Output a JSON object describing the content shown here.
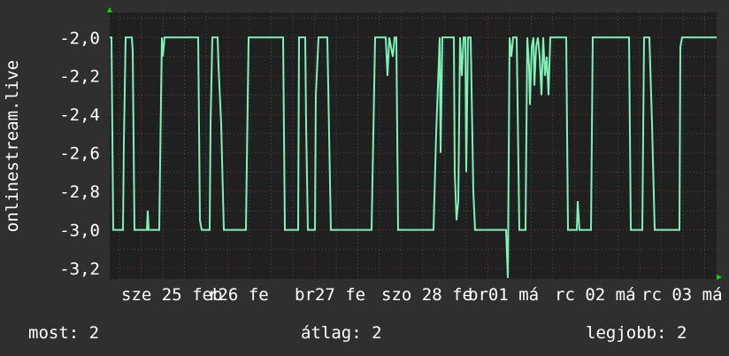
{
  "chart_data": {
    "type": "line",
    "title": "",
    "ylabel": "onlinestream.live",
    "xlabel": "",
    "ylim": [
      -3.255,
      -1.87
    ],
    "y_ticks": [
      "-2,0",
      "-2,2",
      "-2,4",
      "-2,6",
      "-2,8",
      "-3,0",
      "-3,2"
    ],
    "y_tick_values": [
      -2.0,
      -2.2,
      -2.4,
      -2.6,
      -2.8,
      -3.0,
      -3.2
    ],
    "x_tick_labels": [
      "sze 25 feb",
      "r26 fe",
      "br27 fe",
      "szo 28 fe",
      "br01 má",
      "rc 02 má",
      "rc 03 má"
    ],
    "grid": true,
    "colors": {
      "background": "#2f2f2f",
      "plot": "#202020",
      "line": "#7ff2b8",
      "grid_minor": "#505050",
      "grid_major": "#7a3030",
      "arrow": "#00e000"
    },
    "series": [
      {
        "points": [
          [
            "02-24 18:00",
            -2.0
          ],
          [
            "02-24 18:30",
            -2.0
          ],
          [
            "02-24 19:00",
            -3.0
          ],
          [
            "02-24 21:45",
            -3.0
          ],
          [
            "02-24 22:00",
            -2.55
          ],
          [
            "02-24 22:30",
            -2.0
          ],
          [
            "02-25 00:15",
            -2.0
          ],
          [
            "02-25 00:30",
            -2.07
          ],
          [
            "02-25 01:00",
            -3.0
          ],
          [
            "02-25 04:30",
            -3.0
          ],
          [
            "02-25 04:45",
            -2.9
          ],
          [
            "02-25 05:00",
            -3.0
          ],
          [
            "02-25 08:00",
            -3.0
          ],
          [
            "02-25 08:15",
            -2.65
          ],
          [
            "02-25 08:45",
            -2.0
          ],
          [
            "02-25 09:00",
            -2.1
          ],
          [
            "02-25 09:30",
            -2.0
          ],
          [
            "02-25 19:00",
            -2.0
          ],
          [
            "02-25 19:30",
            -2.95
          ],
          [
            "02-25 20:00",
            -3.0
          ],
          [
            "02-25 22:15",
            -3.0
          ],
          [
            "02-25 22:30",
            -2.45
          ],
          [
            "02-25 23:00",
            -2.0
          ],
          [
            "02-26 00:30",
            -2.0
          ],
          [
            "02-26 00:45",
            -2.15
          ],
          [
            "02-26 01:30",
            -2.45
          ],
          [
            "02-26 02:15",
            -3.0
          ],
          [
            "02-26 08:30",
            -3.0
          ],
          [
            "02-26 08:45",
            -2.65
          ],
          [
            "02-26 09:15",
            -2.0
          ],
          [
            "02-26 19:00",
            -2.0
          ],
          [
            "02-26 19:30",
            -3.0
          ],
          [
            "02-26 23:15",
            -3.0
          ],
          [
            "02-26 23:30",
            -2.0
          ],
          [
            "02-27 01:15",
            -2.0
          ],
          [
            "02-27 01:30",
            -2.45
          ],
          [
            "02-27 02:00",
            -3.0
          ],
          [
            "02-27 04:00",
            -3.0
          ],
          [
            "02-27 04:15",
            -2.3
          ],
          [
            "02-27 05:00",
            -2.0
          ],
          [
            "02-27 07:30",
            -2.0
          ],
          [
            "02-27 08:30",
            -3.0
          ],
          [
            "02-27 20:00",
            -3.0
          ],
          [
            "02-27 21:00",
            -2.0
          ],
          [
            "02-28 00:00",
            -2.0
          ],
          [
            "02-28 00:30",
            -2.2
          ],
          [
            "02-28 01:00",
            -2.0
          ],
          [
            "02-28 02:00",
            -2.1
          ],
          [
            "02-28 02:30",
            -2.0
          ],
          [
            "02-28 03:00",
            -2.0
          ],
          [
            "02-28 03:30",
            -3.0
          ],
          [
            "02-28 13:30",
            -3.0
          ],
          [
            "02-28 14:15",
            -2.5
          ],
          [
            "02-28 14:45",
            -2.25
          ],
          [
            "02-28 15:15",
            -2.0
          ],
          [
            "02-28 15:30",
            -2.6
          ],
          [
            "02-28 16:00",
            -2.0
          ],
          [
            "02-28 19:15",
            -2.0
          ],
          [
            "02-28 19:30",
            -2.7
          ],
          [
            "02-28 20:00",
            -2.95
          ],
          [
            "02-28 20:30",
            -2.85
          ],
          [
            "02-28 21:00",
            -2.0
          ],
          [
            "02-28 21:30",
            -2.2
          ],
          [
            "02-28 22:00",
            -2.0
          ],
          [
            "02-28 22:30",
            -2.0
          ],
          [
            "02-28 22:45",
            -2.7
          ],
          [
            "02-28 23:15",
            -2.0
          ],
          [
            "03-01 00:00",
            -2.0
          ],
          [
            "03-01 00:45",
            -2.8
          ],
          [
            "03-01 01:15",
            -3.0
          ],
          [
            "03-01 10:00",
            -3.0
          ],
          [
            "03-01 10:30",
            -3.25
          ],
          [
            "03-01 11:00",
            -2.0
          ],
          [
            "03-01 11:30",
            -2.1
          ],
          [
            "03-01 12:00",
            -2.0
          ],
          [
            "03-01 13:00",
            -2.0
          ],
          [
            "03-01 13:45",
            -3.0
          ],
          [
            "03-01 15:30",
            -3.0
          ],
          [
            "03-01 16:00",
            -2.0
          ],
          [
            "03-01 16:30",
            -2.15
          ],
          [
            "03-01 16:45",
            -2.35
          ],
          [
            "03-01 17:15",
            -2.05
          ],
          [
            "03-01 17:45",
            -2.0
          ],
          [
            "03-01 18:00",
            -2.25
          ],
          [
            "03-01 18:30",
            -2.05
          ],
          [
            "03-01 19:00",
            -2.0
          ],
          [
            "03-01 19:30",
            -2.1
          ],
          [
            "03-01 20:00",
            -2.3
          ],
          [
            "03-01 20:30",
            -2.0
          ],
          [
            "03-01 21:00",
            -2.2
          ],
          [
            "03-01 21:30",
            -2.1
          ],
          [
            "03-01 22:00",
            -2.3
          ],
          [
            "03-01 22:30",
            -2.0
          ],
          [
            "03-02 03:00",
            -2.0
          ],
          [
            "03-02 03:30",
            -3.0
          ],
          [
            "03-02 06:00",
            -3.0
          ],
          [
            "03-02 06:15",
            -2.85
          ],
          [
            "03-02 06:45",
            -3.0
          ],
          [
            "03-02 10:00",
            -3.0
          ],
          [
            "03-02 10:30",
            -2.0
          ],
          [
            "03-02 20:45",
            -2.0
          ],
          [
            "03-02 21:15",
            -3.0
          ],
          [
            "03-03 00:30",
            -3.0
          ],
          [
            "03-03 01:00",
            -2.0
          ],
          [
            "03-03 02:30",
            -2.0
          ],
          [
            "03-03 03:15",
            -2.45
          ],
          [
            "03-03 04:00",
            -3.0
          ],
          [
            "03-03 11:00",
            -3.0
          ],
          [
            "03-03 11:15",
            -2.05
          ],
          [
            "03-03 11:45",
            -2.0
          ],
          [
            "03-03 21:30",
            -2.0
          ]
        ]
      }
    ]
  },
  "legend": {
    "current": "most: 2",
    "average": "átlag: 2",
    "maximum": "legjobb: 2"
  }
}
